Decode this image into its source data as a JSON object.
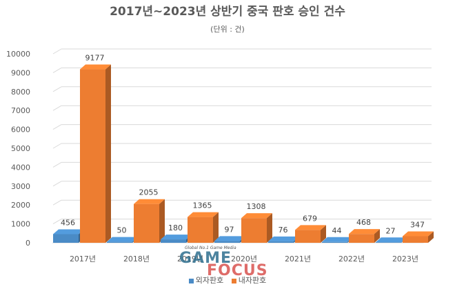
{
  "chart_data": {
    "type": "bar",
    "title": "2017년~2023년 상반기 중국 판호 승인 건수",
    "subtitle": "(단위 : 건)",
    "categories": [
      "2017년",
      "2018년",
      "2019년",
      "2020년",
      "2021년",
      "2022년",
      "2023년"
    ],
    "series": [
      {
        "name": "외자판호",
        "color": "#4a8bc6",
        "values": [
          456,
          50,
          180,
          97,
          76,
          44,
          27
        ]
      },
      {
        "name": "내자판호",
        "color": "#ed7d31",
        "values": [
          9177,
          2055,
          1365,
          1308,
          679,
          468,
          347
        ]
      }
    ],
    "y_ticks": [
      "0",
      "1000",
      "2000",
      "3000",
      "4000",
      "5000",
      "6000",
      "7000",
      "8000",
      "9000",
      "10000"
    ],
    "ylim": [
      0,
      10000
    ],
    "grid": true,
    "legend_position": "bottom",
    "style": "3d-clustered-column"
  },
  "watermark": {
    "tagline": "Global No.1 Game Media",
    "word1": "GAME",
    "word2": "FOCUS"
  }
}
